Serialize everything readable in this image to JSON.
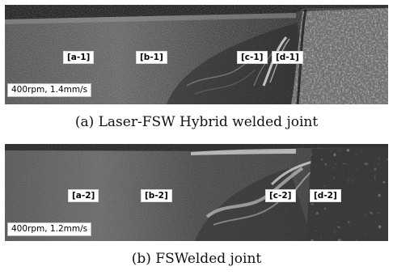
{
  "figure": {
    "panel_a": {
      "zone_labels": [
        "[a-1]",
        "[b-1]",
        "[c-1]",
        "[d-1]"
      ],
      "process_params": "400rpm, 1.4mm/s",
      "caption": "(a) Laser-FSW Hybrid welded joint"
    },
    "panel_b": {
      "zone_labels": [
        "[a-2]",
        "[b-2]",
        "[c-2]",
        "[d-2]"
      ],
      "process_params": "400rpm, 1.2mm/s",
      "caption": "(b) FSWelded joint"
    }
  }
}
